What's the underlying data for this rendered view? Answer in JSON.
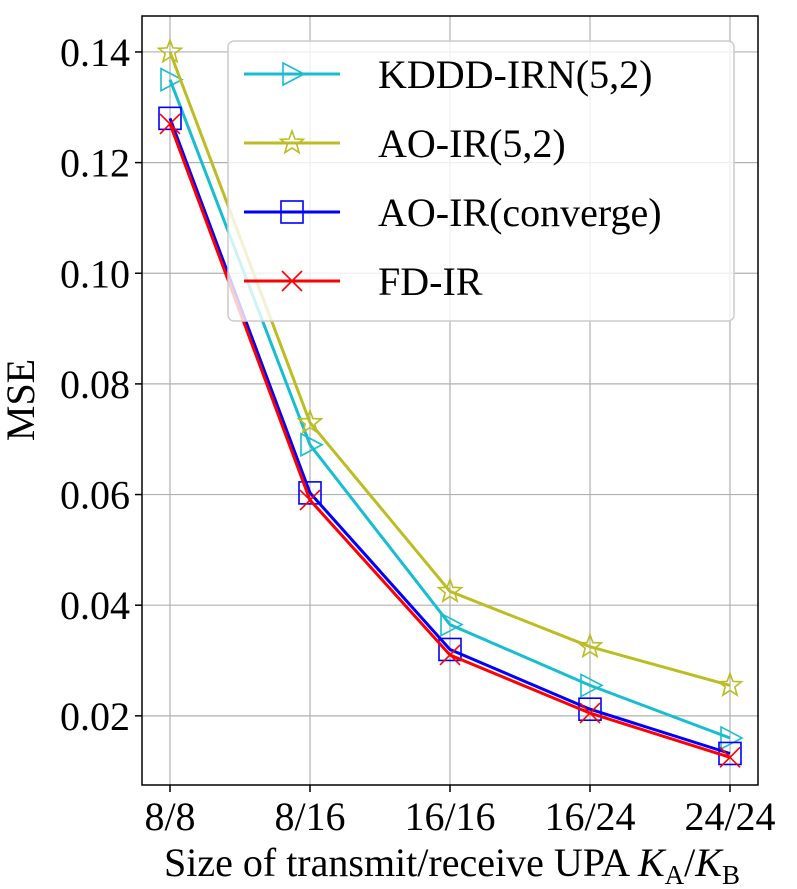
{
  "chart_data": {
    "type": "line",
    "categories": [
      "8/8",
      "8/16",
      "16/16",
      "16/24",
      "24/24"
    ],
    "series": [
      {
        "name": "KDDD-IRN(5,2)",
        "color": "#17becf",
        "marker": "triangle-right",
        "values": [
          0.135,
          0.069,
          0.0365,
          0.0255,
          0.016
        ]
      },
      {
        "name": "AO-IR(5,2)",
        "color": "#bcbd22",
        "marker": "star",
        "values": [
          0.14,
          0.073,
          0.0425,
          0.0325,
          0.0255
        ]
      },
      {
        "name": "AO-IR(converge)",
        "color": "#0000ff",
        "marker": "square",
        "values": [
          0.128,
          0.0603,
          0.032,
          0.0212,
          0.0132
        ]
      },
      {
        "name": "FD-IR",
        "color": "#ff0000",
        "marker": "x",
        "values": [
          0.127,
          0.059,
          0.031,
          0.0205,
          0.0125
        ]
      }
    ],
    "yticks": [
      "0.02",
      "0.04",
      "0.06",
      "0.08",
      "0.10",
      "0.12",
      "0.14"
    ],
    "ylim": [
      0.0075,
      0.1465
    ],
    "ylabel": "MSE",
    "xlabel": "Size of transmit/receive UPA ",
    "xlabel_math": {
      "k1": "K",
      "sub1": "A",
      "sep": "/",
      "k2": "K",
      "sub2": "B"
    },
    "grid": true,
    "legend_position": "top-right"
  }
}
